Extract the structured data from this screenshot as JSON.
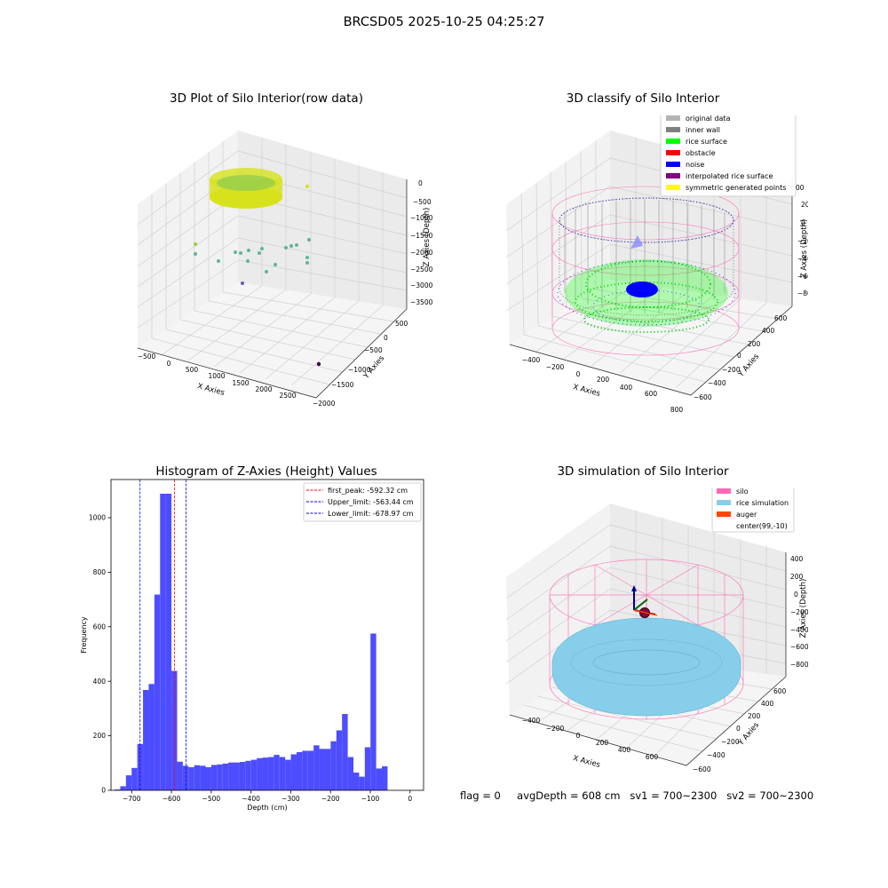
{
  "figure": {
    "suptitle": "BRCSD05 2025-10-25 04:25:27",
    "stats": {
      "flag": "flag = 0",
      "avg_depth": "avgDepth = 608 cm",
      "sv1": "sv1 = 700~2300",
      "sv2": "sv2 = 700~2300"
    }
  },
  "chart_data": [
    {
      "id": "raw",
      "type": "scatter",
      "title": "3D Plot of Silo Interior(row data)",
      "xlabel": "X Axies",
      "ylabel": "Y Axies",
      "zlabel": "Z Axies (Depth)",
      "x_ticks": [
        "−500",
        "0",
        "500",
        "1000",
        "1500",
        "2000",
        "2500"
      ],
      "y_ticks": [
        "500",
        "0",
        "−500",
        "−1000",
        "−1500",
        "−2000"
      ],
      "z_ticks": [
        "0",
        "−500",
        "−1000",
        "−1500",
        "−2000",
        "−2500",
        "−3000",
        "−3500"
      ],
      "colors": {
        "surface": "#d7e21c",
        "mid": "#5fb49c",
        "deep": "#6b5aa8",
        "far": "#440154"
      }
    },
    {
      "id": "classify",
      "type": "scatter",
      "title": "3D classify of Silo Interior",
      "xlabel": "X Axies",
      "ylabel": "Y Axies",
      "zlabel": "Z Axies (Depth)",
      "x_ticks": [
        "−400",
        "−200",
        "0",
        "200",
        "400",
        "600",
        "800"
      ],
      "y_ticks": [
        "600",
        "400",
        "200",
        "0",
        "−200",
        "−400",
        "−600"
      ],
      "z_ticks": [
        "200",
        "0",
        "−200",
        "−400",
        "−600",
        "−800"
      ],
      "z_tick_partial": "00",
      "legend": [
        {
          "label": "original data",
          "color": "#b4b4b4"
        },
        {
          "label": "inner wall",
          "color": "#808080"
        },
        {
          "label": "rice surface",
          "color": "#00ff00"
        },
        {
          "label": "obstacle",
          "color": "#ff0000"
        },
        {
          "label": "noise",
          "color": "#0000ff"
        },
        {
          "label": "interpolated rice surface",
          "color": "#800080"
        },
        {
          "label": "symmetric generated points",
          "color": "#ffff00"
        }
      ],
      "colors": {
        "cylinder": "#ff69b4"
      }
    },
    {
      "id": "histogram",
      "type": "bar",
      "title": "Histogram of Z-Axies (Height) Values",
      "xlabel": "Depth (cm)",
      "ylabel": "Frequency",
      "xlim": [
        -752,
        34
      ],
      "ylim": [
        0,
        1140
      ],
      "x_ticks": [
        -700,
        -600,
        -500,
        -400,
        -300,
        -200,
        -100,
        0
      ],
      "x_tick_labels": [
        "−700",
        "−600",
        "−500",
        "−400",
        "−300",
        "−200",
        "−100",
        "0"
      ],
      "y_ticks": [
        0,
        200,
        400,
        600,
        800,
        1000
      ],
      "y_tick_labels": [
        "0",
        "200",
        "400",
        "600",
        "800",
        "1000"
      ],
      "bin_width": 14.3,
      "first_bin_start": -743,
      "values": [
        3,
        15,
        55,
        82,
        170,
        368,
        390,
        718,
        1088,
        1088,
        438,
        105,
        90,
        85,
        92,
        90,
        85,
        93,
        95,
        98,
        102,
        102,
        104,
        108,
        112,
        118,
        120,
        122,
        130,
        122,
        112,
        132,
        140,
        145,
        145,
        165,
        152,
        152,
        180,
        220,
        280,
        122,
        65,
        50,
        158,
        575,
        80,
        88
      ],
      "bar_color": "#4d4dff",
      "vlines": [
        {
          "label": "first_peak: -592.32 cm",
          "value": -592.32,
          "color": "#ff0000"
        },
        {
          "label": "Upper_limit: -563.44 cm",
          "value": -563.44,
          "color": "#0000ff"
        },
        {
          "label": "Lower_limit: -678.97 cm",
          "value": -678.97,
          "color": "#0000ff"
        }
      ]
    },
    {
      "id": "simulation",
      "type": "scatter",
      "title": "3D simulation of Silo Interior",
      "xlabel": "X Axies",
      "ylabel": "Y Axies",
      "zlabel": "Z Axies (Depth)",
      "x_ticks": [
        "−400",
        "−200",
        "0",
        "200",
        "400",
        "600"
      ],
      "y_ticks": [
        "600",
        "400",
        "200",
        "0",
        "−200",
        "−400",
        "−600"
      ],
      "z_ticks": [
        "400",
        "200",
        "0",
        "−200",
        "−400",
        "−600",
        "−800"
      ],
      "legend": [
        {
          "label": "silo",
          "color": "#ff69b4"
        },
        {
          "label": "rice simulation",
          "color": "#87ceeb"
        },
        {
          "label": "auger",
          "color": "#ff4500"
        },
        {
          "label": "center(99,-10)",
          "color": "#ffffff"
        }
      ]
    }
  ]
}
